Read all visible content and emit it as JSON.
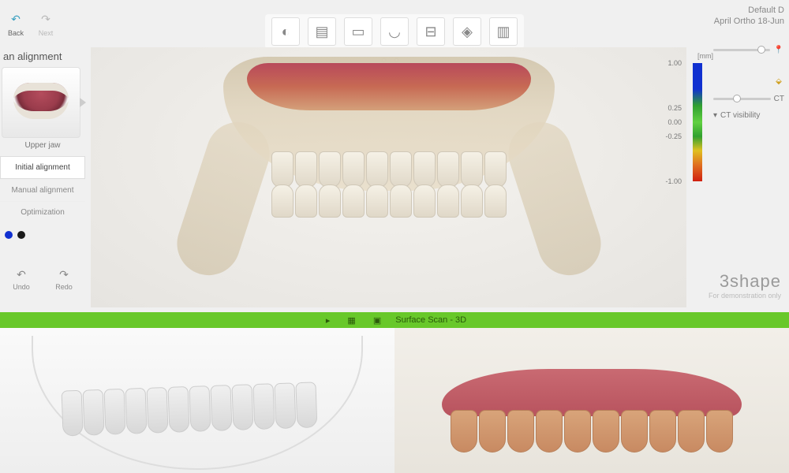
{
  "header": {
    "back_label": "Back",
    "next_label": "Next",
    "case_line1": "Default D",
    "case_line2": "April Ortho 18-Jun"
  },
  "toolbar": {
    "tools": [
      {
        "name": "patient-tool-icon",
        "glyph": "◐"
      },
      {
        "name": "scan-tool-icon",
        "glyph": "▤"
      },
      {
        "name": "save-tool-icon",
        "glyph": "▭"
      },
      {
        "name": "arch-tool-icon",
        "glyph": "◡"
      },
      {
        "name": "align-tool-icon",
        "glyph": "⊟"
      },
      {
        "name": "mesh-tool-icon",
        "glyph": "◈"
      },
      {
        "name": "export-tool-icon",
        "glyph": "▥"
      }
    ]
  },
  "sidebar": {
    "title": "an alignment",
    "thumbnail_label": "Upper jaw",
    "steps": [
      {
        "label": "Initial alignment",
        "active": true
      },
      {
        "label": "Manual alignment",
        "active": false
      },
      {
        "label": "Optimization",
        "active": false
      }
    ],
    "dot_colors": [
      "#1030d0",
      "#1a1a1a"
    ],
    "undo_label": "Undo",
    "redo_label": "Redo"
  },
  "legend": {
    "unit": "[mm]",
    "ticks": [
      {
        "value": "1.00",
        "pos_pct": 0
      },
      {
        "value": "0.25",
        "pos_pct": 38
      },
      {
        "value": "0.00",
        "pos_pct": 50
      },
      {
        "value": "-0.25",
        "pos_pct": 62
      },
      {
        "value": "-1.00",
        "pos_pct": 100
      }
    ],
    "gradient_stops": [
      "#1030d0",
      "#30a030",
      "#60d040",
      "#e0c020",
      "#d02010"
    ]
  },
  "right_controls": {
    "slider1_pos_pct": 78,
    "slider2_label": "CT",
    "slider2_pos_pct": 35,
    "visibility_label": "CT visibility"
  },
  "green_bar": {
    "label": "Surface Scan - 3D"
  },
  "brand": {
    "logo": "3shape",
    "sub": "For demonstration only"
  },
  "bottom_status": ""
}
